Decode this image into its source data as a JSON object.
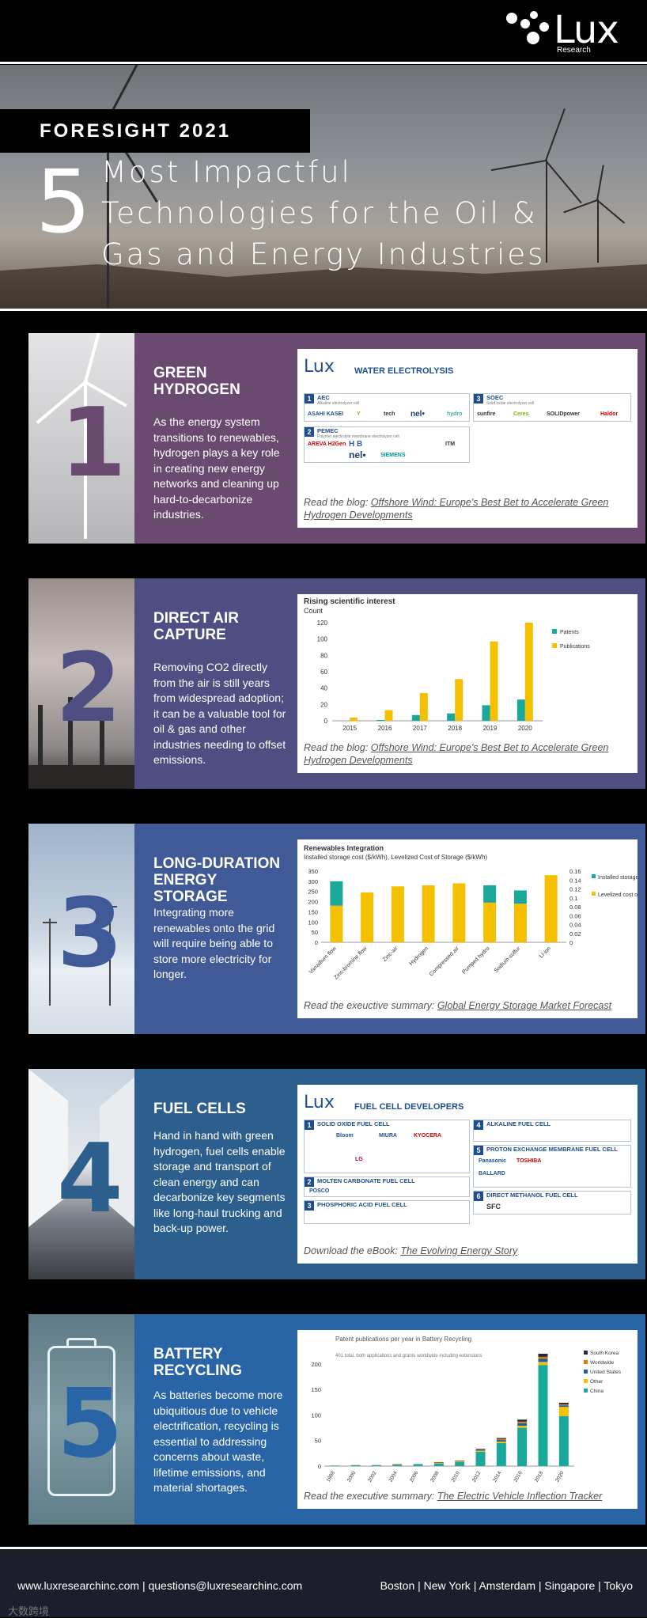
{
  "brand": {
    "name": "Lux",
    "sub": "Research"
  },
  "hero": {
    "tag": "FORESIGHT 2021",
    "number": "5",
    "title": "Most Impactful Technologies for the Oil & Gas and Energy Industries"
  },
  "sections": [
    {
      "num": "1",
      "title": "GREEN HYDROGEN",
      "text": "As the energy system transitions to renewables, hydrogen plays a key role in creating new energy networks and cleaning up hard-to-decarbonize industries.",
      "link_prefix": "Read the blog: ",
      "link": "Offshore Wind: Europe's Best Bet to Accelerate Green Hydrogen Developments",
      "card": {
        "logo": "Lux",
        "head": "WATER ELECTROLYSIS",
        "cats": [
          {
            "n": "1",
            "label": "AEC",
            "sub": "Alkaline electrolyzer cell",
            "cos": [
              "ASAHI KASEI",
              "Y",
              "tech",
              "nel•",
              "hydro"
            ]
          },
          {
            "n": "2",
            "label": "PEMEC",
            "sub": "Polymer electrolyte membrane electrolyzer cell",
            "cos": [
              "AREVA H2Gen",
              "H B",
              "ITM",
              "nel•",
              "SIEMENS"
            ]
          },
          {
            "n": "3",
            "label": "SOEC",
            "sub": "Solid oxide electrolyzer cell",
            "cos": [
              "sunfire",
              "Ceres",
              "SOLIDpower",
              "Haldor"
            ]
          }
        ]
      }
    },
    {
      "num": "2",
      "title": "DIRECT AIR CAPTURE",
      "text": "Removing CO2 directly from the air is still years from widespread adoption; it can be a valuable tool for oil & gas and other industries needing to offset emissions.",
      "link_prefix": "Read the blog: ",
      "link": "Offshore Wind: Europe's Best Bet to Accelerate Green Hydrogen Developments"
    },
    {
      "num": "3",
      "title": "LONG-DURATION ENERGY STORAGE",
      "text": "Integrating more renewables onto the grid will require being able to store more electricity for longer.",
      "link_prefix": "Read the exeuctive summary: ",
      "link": "Global Energy Storage Market Forecast"
    },
    {
      "num": "4",
      "title": "FUEL CELLS",
      "text": "Hand in hand with green hydrogen, fuel cells enable storage and transport of clean energy and can decarbonize key segments like long-haul trucking and back-up power.",
      "link_prefix": "Download the eBook: ",
      "link": "The Evolving Energy Story",
      "card": {
        "logo": "Lux",
        "head": "FUEL CELL DEVELOPERS",
        "cats": [
          {
            "n": "1",
            "label": "SOLID OXIDE FUEL CELL"
          },
          {
            "n": "2",
            "label": "MOLTEN CARBONATE FUEL CELL"
          },
          {
            "n": "3",
            "label": "PHOSPHORIC ACID FUEL CELL"
          },
          {
            "n": "4",
            "label": "ALKALINE FUEL CELL"
          },
          {
            "n": "5",
            "label": "PROTON EXCHANGE MEMBRANE FUEL CELL"
          },
          {
            "n": "6",
            "label": "DIRECT METHANOL FUEL CELL"
          }
        ],
        "cos": [
          "Bloom",
          "MIURA",
          "KYOCERA",
          "LG",
          "POSCO",
          "Panasonic",
          "TOSHIBA",
          "BALLARD",
          "SFC"
        ]
      }
    },
    {
      "num": "5",
      "title": "BATTERY RECYCLING",
      "text": "As batteries become more ubiquitious due to vehicle electrification, recycling is essential to addressing concerns about waste, lifetime emissions, and material shortages.",
      "link_prefix": "Read the executive summary: ",
      "link": "The Electric Vehicle Inflection Tracker"
    }
  ],
  "colors": {
    "s1": "#6b4a72",
    "s2": "#4e4e82",
    "s3": "#3f5a96",
    "s4": "#2c5f8e",
    "s5": "#2864a6",
    "teal": "#19a89a",
    "yellow": "#f5c000"
  },
  "chart_data": [
    {
      "type": "bar",
      "title": "Rising scientific interest",
      "ylabel": "Count",
      "categories": [
        "2015",
        "2016",
        "2017",
        "2018",
        "2019",
        "2020"
      ],
      "x_all": [
        2015,
        2016,
        2017,
        2018,
        2019,
        2020
      ],
      "series": [
        {
          "name": "Patents",
          "values": [
            0,
            1,
            7,
            9,
            19,
            26
          ]
        },
        {
          "name": "Publications",
          "values": [
            4,
            13,
            34,
            51,
            97,
            120
          ]
        }
      ],
      "ylim": [
        0,
        120
      ],
      "yticks": [
        0,
        20,
        40,
        60,
        80,
        100,
        120
      ],
      "legend": "right"
    },
    {
      "type": "bar",
      "title": "Renewables Integration",
      "subtitle": "Installed storage cost ($/kWh), Levelized Cost of Storage ($/kWh)",
      "categories": [
        "Vanadium flow",
        "Zinc-bromine flow",
        "Zinc-air",
        "Hydrogen",
        "Compressed air",
        "Pumped hydro",
        "Sodium-sulfur",
        "Li-ion"
      ],
      "series": [
        {
          "name": "Installed storage costs",
          "values": [
            180,
            245,
            275,
            280,
            290,
            195,
            190,
            330
          ]
        },
        {
          "name": "Levelized cost of storage",
          "values": [
            120,
            0,
            0,
            0,
            0,
            85,
            65,
            0
          ]
        }
      ],
      "ylim": [
        0,
        350
      ],
      "yticks": [
        0,
        50,
        100,
        150,
        200,
        250,
        300,
        350
      ],
      "y2ticks": [
        "0",
        "0.02",
        "0.04",
        "0.06",
        "0.08",
        "0.1",
        "0.12",
        "0.14",
        "0.16"
      ],
      "legend": "right"
    },
    {
      "type": "bar",
      "title": "Patent publications per year in Battery Recycling",
      "subtitle": "401 total, both applications and grants worldwide including extensions",
      "categories": [
        "1998",
        "2000",
        "2002",
        "2004",
        "2006",
        "2008",
        "2010",
        "2012",
        "2014",
        "2016",
        "2018",
        "2020"
      ],
      "series": [
        {
          "name": "South Korea",
          "values": [
            0,
            0,
            0,
            0,
            0,
            0,
            0,
            1,
            2,
            4,
            6,
            3
          ]
        },
        {
          "name": "Worldwide",
          "values": [
            0,
            0,
            0,
            1,
            0,
            1,
            1,
            1,
            2,
            3,
            4,
            2
          ]
        },
        {
          "name": "United States",
          "values": [
            0,
            0,
            0,
            0,
            0,
            1,
            1,
            2,
            3,
            5,
            6,
            3
          ]
        },
        {
          "name": "Other",
          "values": [
            0,
            0,
            0,
            0,
            0,
            1,
            1,
            2,
            3,
            4,
            6,
            18
          ]
        },
        {
          "name": "China",
          "values": [
            1,
            2,
            2,
            3,
            4,
            5,
            8,
            28,
            45,
            75,
            198,
            98
          ]
        }
      ],
      "ylim": [
        0,
        220
      ],
      "yticks": [
        0,
        50,
        100,
        150,
        200
      ],
      "legend": "right"
    }
  ],
  "footer": {
    "left": "www.luxresearchinc.com | questions@luxresearchinc.com",
    "right": "Boston | New York | Amsterdam | Singapore | Tokyo",
    "watermark": "大数跨境"
  }
}
